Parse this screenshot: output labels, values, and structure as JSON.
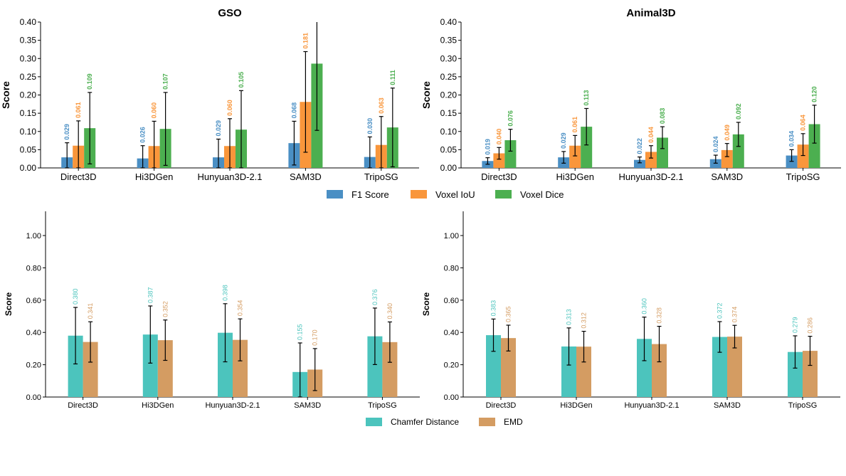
{
  "chart_data": [
    {
      "type": "bar",
      "title": "GSO",
      "ylabel": "Score",
      "ylim": [
        0,
        0.4
      ],
      "yticks": [
        "0.00",
        "0.05",
        "0.10",
        "0.15",
        "0.20",
        "0.25",
        "0.30",
        "0.35",
        "0.40"
      ],
      "categories": [
        "Direct3D",
        "Hi3DGen",
        "Hunyuan3D-2.1",
        "SAM3D",
        "TripoSG"
      ],
      "series": [
        {
          "name": "F1 Score",
          "color": "#4a8fc4",
          "values": [
            0.029,
            0.026,
            0.029,
            0.068,
            0.03
          ],
          "labels": [
            "0.029",
            "0.026",
            "0.029",
            "0.068",
            "0.030"
          ],
          "err": [
            0.04,
            0.035,
            0.05,
            0.06,
            0.055
          ]
        },
        {
          "name": "Voxel IoU",
          "color": "#f9963b",
          "values": [
            0.061,
            0.06,
            0.06,
            0.181,
            0.063
          ],
          "labels": [
            "0.061",
            "0.060",
            "0.060",
            "0.181",
            "0.063"
          ],
          "err": [
            0.068,
            0.068,
            0.075,
            0.138,
            0.078
          ]
        },
        {
          "name": "Voxel Dice",
          "color": "#4caf50",
          "values": [
            0.109,
            0.107,
            0.105,
            0.286,
            0.111
          ],
          "labels": [
            "0.109",
            "0.107",
            "0.105",
            "",
            "0.111"
          ],
          "err": [
            0.098,
            0.1,
            0.107,
            0.183,
            0.108
          ]
        }
      ]
    },
    {
      "type": "bar",
      "title": "Animal3D",
      "ylabel": "Score",
      "ylim": [
        0,
        0.4
      ],
      "yticks": [
        "0.00",
        "0.05",
        "0.10",
        "0.15",
        "0.20",
        "0.25",
        "0.30",
        "0.35",
        "0.40"
      ],
      "categories": [
        "Direct3D",
        "Hi3DGen",
        "Hunyuan3D-2.1",
        "SAM3D",
        "TripoSG"
      ],
      "series": [
        {
          "name": "F1 Score",
          "color": "#4a8fc4",
          "values": [
            0.019,
            0.029,
            0.022,
            0.024,
            0.034
          ],
          "labels": [
            "0.019",
            "0.029",
            "0.022",
            "0.024",
            "0.034"
          ],
          "err": [
            0.009,
            0.016,
            0.008,
            0.011,
            0.016
          ]
        },
        {
          "name": "Voxel IoU",
          "color": "#f9963b",
          "values": [
            0.04,
            0.061,
            0.044,
            0.049,
            0.064
          ],
          "labels": [
            "0.040",
            "0.061",
            "0.044",
            "0.049",
            "0.064"
          ],
          "err": [
            0.016,
            0.028,
            0.017,
            0.018,
            0.03
          ]
        },
        {
          "name": "Voxel Dice",
          "color": "#4caf50",
          "values": [
            0.076,
            0.113,
            0.083,
            0.092,
            0.12
          ],
          "labels": [
            "0.076",
            "0.113",
            "0.083",
            "0.092",
            "0.120"
          ],
          "err": [
            0.03,
            0.05,
            0.03,
            0.033,
            0.052
          ]
        }
      ]
    },
    {
      "type": "bar",
      "title": "",
      "ylabel": "Score",
      "ylim": [
        0,
        1.15
      ],
      "yticks": [
        "0.00",
        "0.20",
        "0.40",
        "0.60",
        "0.80",
        "1.00"
      ],
      "categories": [
        "Direct3D",
        "Hi3DGen",
        "Hunyuan3D-2.1",
        "SAM3D",
        "TripoSG"
      ],
      "series": [
        {
          "name": "Chamfer Distance",
          "color": "#4cc4bd",
          "values": [
            0.38,
            0.387,
            0.398,
            0.155,
            0.376
          ],
          "labels": [
            "0.380",
            "0.387",
            "0.398",
            "0.155",
            "0.376"
          ],
          "err": [
            0.175,
            0.177,
            0.18,
            0.18,
            0.175
          ]
        },
        {
          "name": "EMD",
          "color": "#d49c62",
          "values": [
            0.341,
            0.352,
            0.354,
            0.17,
            0.34
          ],
          "labels": [
            "0.341",
            "0.352",
            "0.354",
            "0.170",
            "0.340"
          ],
          "err": [
            0.125,
            0.125,
            0.13,
            0.13,
            0.125
          ]
        }
      ]
    },
    {
      "type": "bar",
      "title": "",
      "ylabel": "Score",
      "ylim": [
        0,
        1.15
      ],
      "yticks": [
        "0.00",
        "0.20",
        "0.40",
        "0.60",
        "0.80",
        "1.00"
      ],
      "categories": [
        "Direct3D",
        "Hi3DGen",
        "Hunyuan3D-2.1",
        "SAM3D",
        "TripoSG"
      ],
      "series": [
        {
          "name": "Chamfer Distance",
          "color": "#4cc4bd",
          "values": [
            0.383,
            0.313,
            0.36,
            0.372,
            0.279
          ],
          "labels": [
            "0.383",
            "0.313",
            "0.360",
            "0.372",
            "0.279"
          ],
          "err": [
            0.1,
            0.115,
            0.135,
            0.095,
            0.1
          ]
        },
        {
          "name": "EMD",
          "color": "#d49c62",
          "values": [
            0.365,
            0.312,
            0.328,
            0.374,
            0.286
          ],
          "labels": [
            "0.365",
            "0.312",
            "0.328",
            "0.374",
            "0.286"
          ],
          "err": [
            0.08,
            0.095,
            0.11,
            0.07,
            0.09
          ]
        }
      ]
    }
  ],
  "legends": {
    "top": [
      "F1 Score",
      "Voxel IoU",
      "Voxel Dice"
    ],
    "bottom": [
      "Chamfer Distance",
      "EMD"
    ]
  },
  "colors": {
    "f1": "#4a8fc4",
    "iou": "#f9963b",
    "dice": "#4caf50",
    "chamfer": "#4cc4bd",
    "emd": "#d49c62"
  }
}
